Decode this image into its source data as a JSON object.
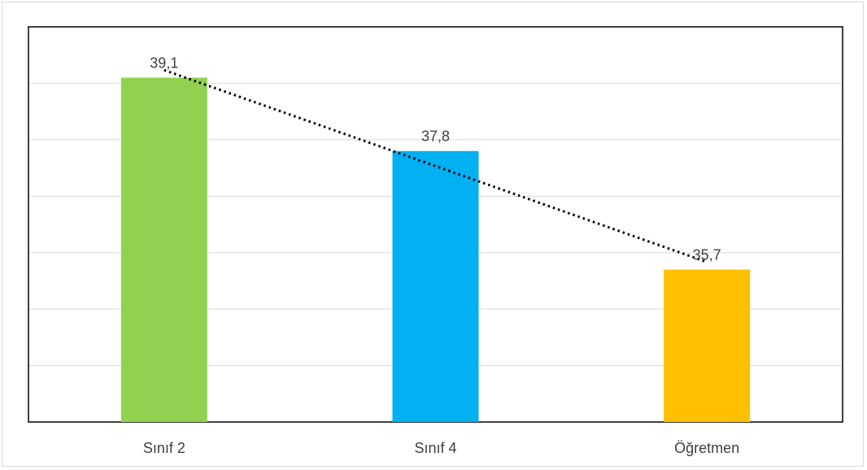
{
  "chart_data": {
    "type": "bar",
    "title": "",
    "xlabel": "",
    "ylabel": "",
    "categories": [
      "Sınıf 2",
      "Sınıf 4",
      "Öğretmen"
    ],
    "values": [
      39.1,
      37.8,
      35.7
    ],
    "value_labels": [
      "39,1",
      "37,8",
      "35,7"
    ],
    "colors": [
      "#92d050",
      "#00b0f0",
      "#ffc000"
    ],
    "ylim": [
      33,
      40
    ],
    "grid": true,
    "trendline": {
      "type": "linear",
      "style": "dotted",
      "color": "#000000"
    }
  }
}
